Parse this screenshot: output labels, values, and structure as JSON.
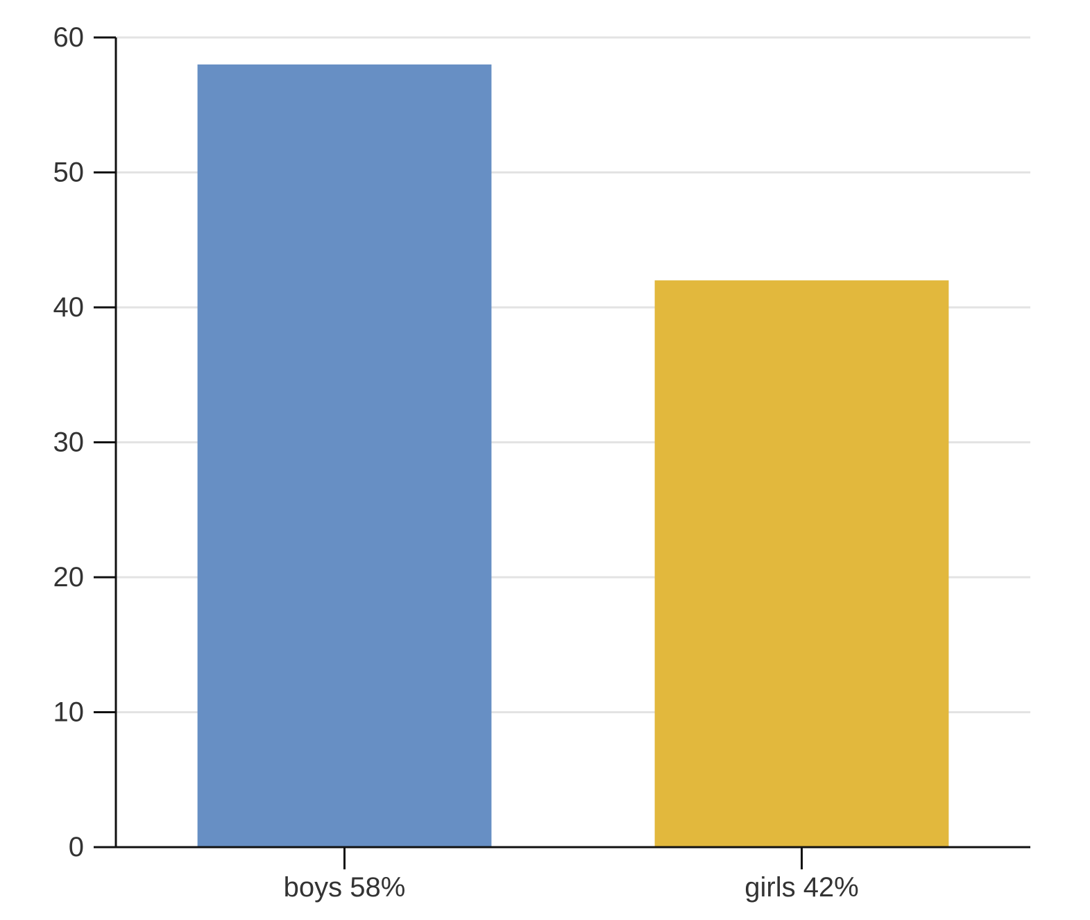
{
  "chart_data": {
    "type": "bar",
    "title": "",
    "xlabel": "",
    "ylabel": "",
    "categories": [
      "boys 58%",
      "girls 42%"
    ],
    "values": [
      58,
      42
    ],
    "colors": [
      "#678fc4",
      "#e2b83d"
    ],
    "ylim": [
      0,
      60
    ],
    "yticks": [
      0,
      10,
      20,
      30,
      40,
      50,
      60
    ],
    "grid": true,
    "legend": "none"
  }
}
